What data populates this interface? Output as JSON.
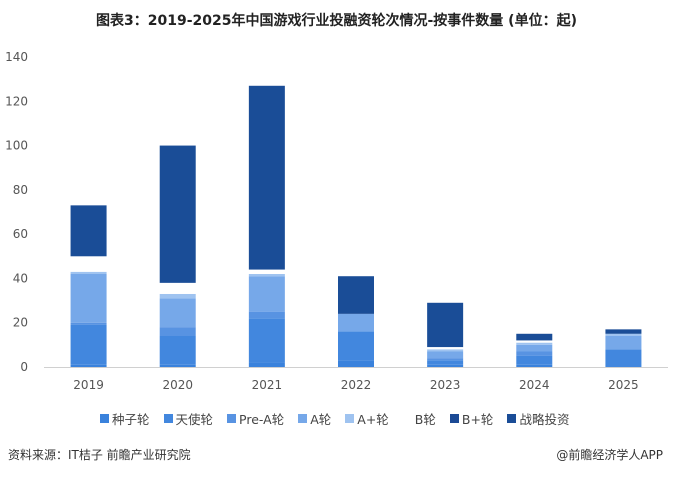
{
  "title": "图表3：2019-2025年中国游戏行业投融资轮次情况-按事件数量 (单位：起)",
  "source": "资料来源：IT桔子 前瞻产业研究院",
  "brand": "@前瞻经济学人APP",
  "chart_data": {
    "type": "bar",
    "stacked": true,
    "title": "图表3：2019-2025年中国游戏行业投融资轮次情况-按事件数量 (单位：起)",
    "categories": [
      "2019",
      "2020",
      "2021",
      "2022",
      "2023",
      "2024",
      "2025"
    ],
    "ylim": [
      0,
      140
    ],
    "yticks": [
      0,
      20,
      40,
      60,
      80,
      100,
      120,
      140
    ],
    "grid": false,
    "legend_position": "bottom",
    "series": [
      {
        "name": "种子轮",
        "color": "#3a82dc",
        "values": [
          1,
          1,
          2,
          3,
          1,
          1,
          0
        ]
      },
      {
        "name": "天使轮",
        "color": "#4287de",
        "values": [
          18,
          13,
          20,
          13,
          2,
          4,
          8
        ]
      },
      {
        "name": "Pre-A轮",
        "color": "#5893e2",
        "values": [
          1,
          4,
          3,
          0,
          1,
          2,
          0
        ]
      },
      {
        "name": "A轮",
        "color": "#76a8e9",
        "values": [
          22,
          13,
          16,
          8,
          3,
          3,
          6
        ]
      },
      {
        "name": "A+轮",
        "color": "#9fc3f0",
        "values": [
          1,
          2,
          1,
          0,
          1,
          1,
          1
        ]
      },
      {
        "name": "B轮",
        "color": "#ffffff",
        "values": [
          7,
          5,
          2,
          0,
          1,
          1,
          0
        ]
      },
      {
        "name": "B+轮",
        "color": "#1b4a95",
        "values": [
          0,
          0,
          0,
          0,
          0,
          0,
          0
        ]
      },
      {
        "name": "战略投资",
        "color": "#1a4d97",
        "values": [
          23,
          62,
          83,
          17,
          20,
          3,
          2
        ]
      }
    ]
  }
}
